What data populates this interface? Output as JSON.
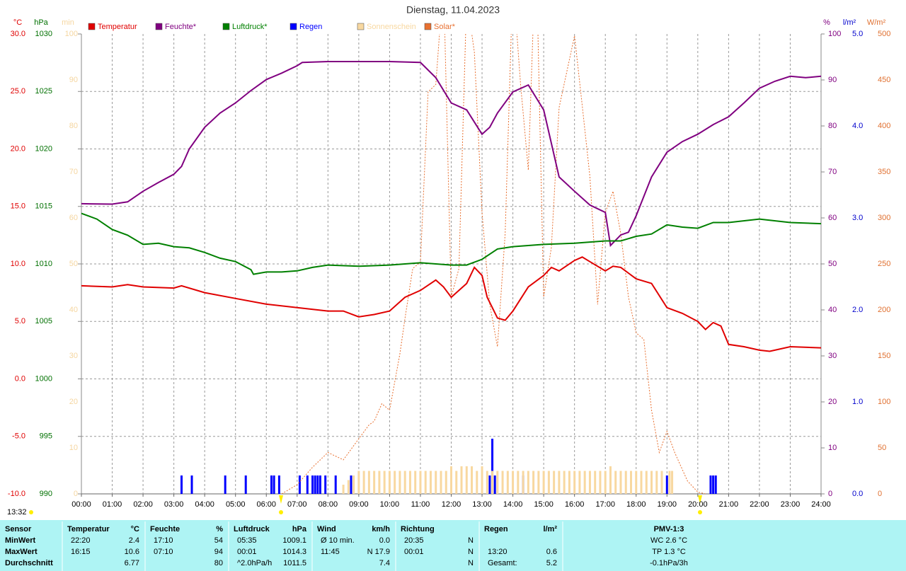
{
  "chart_data": {
    "type": "line",
    "title": "Dienstag, 11.04.2023",
    "grid": true,
    "xlim": [
      0,
      1440
    ],
    "xticks": [
      {
        "value": 0,
        "label": "00:00"
      },
      {
        "value": 60,
        "label": "01:00"
      },
      {
        "value": 120,
        "label": "02:00"
      },
      {
        "value": 180,
        "label": "03:00"
      },
      {
        "value": 240,
        "label": "04:00"
      },
      {
        "value": 300,
        "label": "05:00"
      },
      {
        "value": 360,
        "label": "06:00"
      },
      {
        "value": 420,
        "label": "07:00"
      },
      {
        "value": 480,
        "label": "08:00"
      },
      {
        "value": 540,
        "label": "09:00"
      },
      {
        "value": 600,
        "label": "10:00"
      },
      {
        "value": 660,
        "label": "11:00"
      },
      {
        "value": 720,
        "label": "12:00"
      },
      {
        "value": 780,
        "label": "13:00"
      },
      {
        "value": 840,
        "label": "14:00"
      },
      {
        "value": 900,
        "label": "15:00"
      },
      {
        "value": 960,
        "label": "16:00"
      },
      {
        "value": 1020,
        "label": "17:00"
      },
      {
        "value": 1080,
        "label": "18:00"
      },
      {
        "value": 1140,
        "label": "19:00"
      },
      {
        "value": 1200,
        "label": "20:00"
      },
      {
        "value": 1260,
        "label": "21:00"
      },
      {
        "value": 1320,
        "label": "22:00"
      },
      {
        "value": 1380,
        "label": "23:00"
      },
      {
        "value": 1440,
        "label": "24:00"
      }
    ],
    "axes": [
      {
        "unit": "°C",
        "color": "#e00000",
        "lim": [
          -10,
          30
        ],
        "ticks": [
          {
            "value": 30,
            "label": "30.0"
          },
          {
            "value": 25,
            "label": "25.0"
          },
          {
            "value": 20,
            "label": "20.0"
          },
          {
            "value": 15,
            "label": "15.0"
          },
          {
            "value": 10,
            "label": "10.0"
          },
          {
            "value": 5,
            "label": "5.0"
          },
          {
            "value": 0,
            "label": "0.0"
          },
          {
            "value": -5,
            "label": "-5.0"
          },
          {
            "value": -10,
            "label": "-10.0"
          }
        ]
      },
      {
        "unit": "hPa",
        "color": "#007000",
        "lim": [
          990,
          1030
        ],
        "ticks": [
          1030,
          1025,
          1020,
          1015,
          1010,
          1005,
          1000,
          995,
          990
        ]
      },
      {
        "unit": "min",
        "color": "#f5d6a0",
        "lim": [
          0,
          100
        ],
        "ticks": [
          100,
          90,
          80,
          70,
          60,
          50,
          40,
          30,
          20,
          10,
          0
        ]
      },
      {
        "unit": "%",
        "color": "#800080",
        "lim": [
          0,
          100
        ],
        "ticks": [
          100,
          90,
          80,
          70,
          60,
          50,
          40,
          30,
          20,
          10,
          0
        ]
      },
      {
        "unit": "l/m²",
        "color": "#0000cc",
        "lim": [
          0,
          5
        ],
        "ticks": [
          {
            "value": 5,
            "label": "5.0"
          },
          {
            "value": 4,
            "label": "4.0"
          },
          {
            "value": 3,
            "label": "3.0"
          },
          {
            "value": 2,
            "label": "2.0"
          },
          {
            "value": 1,
            "label": "1.0"
          },
          {
            "value": 0,
            "label": "0.0"
          }
        ]
      },
      {
        "unit": "W/m²",
        "color": "#e07030",
        "lim": [
          0,
          500
        ],
        "ticks": [
          500,
          450,
          400,
          350,
          300,
          250,
          200,
          150,
          100,
          50,
          0
        ]
      }
    ],
    "series": [
      {
        "name": "Temperatur",
        "color": "#e00000",
        "type": "line",
        "axis": 0,
        "x": [
          0,
          60,
          90,
          120,
          180,
          195,
          240,
          300,
          360,
          420,
          480,
          510,
          540,
          570,
          600,
          630,
          660,
          690,
          705,
          720,
          750,
          765,
          780,
          790,
          810,
          825,
          840,
          870,
          900,
          915,
          930,
          960,
          975,
          990,
          1020,
          1035,
          1050,
          1080,
          1110,
          1140,
          1170,
          1200,
          1215,
          1230,
          1245,
          1260,
          1290,
          1320,
          1340,
          1350,
          1380,
          1440
        ],
        "values": [
          8.1,
          8.0,
          8.2,
          8.0,
          7.9,
          8.1,
          7.5,
          7.0,
          6.5,
          6.2,
          5.9,
          5.9,
          5.4,
          5.6,
          5.9,
          7.1,
          7.7,
          8.6,
          8.0,
          7.1,
          8.3,
          9.7,
          9.0,
          7.1,
          5.3,
          5.1,
          5.9,
          8.0,
          9.0,
          9.7,
          9.4,
          10.3,
          10.6,
          10.2,
          9.4,
          9.8,
          9.7,
          8.7,
          8.3,
          6.2,
          5.7,
          5.0,
          4.3,
          4.9,
          4.6,
          3.0,
          2.8,
          2.5,
          2.4,
          2.5,
          2.8,
          2.7
        ]
      },
      {
        "name": "Feuchte*",
        "color": "#800080",
        "type": "line",
        "axis": 3,
        "x": [
          0,
          60,
          90,
          120,
          150,
          180,
          195,
          210,
          240,
          270,
          300,
          330,
          360,
          390,
          420,
          430,
          480,
          600,
          660,
          690,
          720,
          750,
          780,
          795,
          810,
          840,
          870,
          900,
          930,
          960,
          990,
          1020,
          1030,
          1050,
          1065,
          1080,
          1110,
          1140,
          1170,
          1200,
          1230,
          1260,
          1290,
          1320,
          1350,
          1380,
          1410,
          1440
        ],
        "values": [
          63.1,
          63,
          63.5,
          65.8,
          67.7,
          69.5,
          71.2,
          75,
          79.7,
          82.8,
          85,
          87.7,
          90.1,
          91.5,
          93.1,
          93.8,
          94,
          94,
          93.8,
          90.5,
          85,
          83.5,
          78.2,
          79.7,
          82.8,
          87.4,
          88.9,
          83.5,
          68.9,
          65.8,
          62.8,
          61.2,
          54,
          56.3,
          56.9,
          60.5,
          68.9,
          74.3,
          76.6,
          78.2,
          80.3,
          82,
          85,
          88.2,
          89.7,
          90.8,
          90.5,
          90.8
        ]
      },
      {
        "name": "Luftdruck*",
        "color": "#008000",
        "type": "line",
        "axis": 1,
        "x": [
          0,
          30,
          60,
          90,
          120,
          150,
          180,
          210,
          240,
          270,
          300,
          330,
          335,
          360,
          390,
          420,
          450,
          480,
          540,
          600,
          660,
          720,
          750,
          780,
          810,
          840,
          900,
          960,
          1020,
          1050,
          1080,
          1110,
          1140,
          1170,
          1200,
          1230,
          1260,
          1320,
          1380,
          1440
        ],
        "values": [
          1014.4,
          1013.9,
          1013.0,
          1012.5,
          1011.7,
          1011.8,
          1011.5,
          1011.4,
          1011.0,
          1010.5,
          1010.2,
          1009.5,
          1009.1,
          1009.3,
          1009.3,
          1009.4,
          1009.7,
          1009.9,
          1009.8,
          1009.9,
          1010.1,
          1009.9,
          1009.9,
          1010.4,
          1011.3,
          1011.5,
          1011.7,
          1011.8,
          1012.0,
          1012.0,
          1012.4,
          1012.6,
          1013.4,
          1013.2,
          1013.1,
          1013.6,
          1013.6,
          1013.9,
          1013.6,
          1013.5
        ]
      },
      {
        "name": "Regen",
        "color": "#0000ff",
        "type": "bar",
        "axis": 4,
        "x": [
          195,
          215,
          280,
          320,
          370,
          375,
          385,
          425,
          440,
          450,
          455,
          460,
          465,
          475,
          495,
          525,
          795,
          800,
          805,
          860,
          1140,
          1225,
          1230,
          1235
        ],
        "values": [
          0.2,
          0.2,
          0.2,
          0.2,
          0.2,
          0.2,
          0.2,
          0.2,
          0.2,
          0.2,
          0.2,
          0.2,
          0.2,
          0.2,
          0.2,
          0.2,
          0.2,
          0.6,
          0.2,
          0.2,
          0.2,
          0.2,
          0.2,
          0.2
        ]
      },
      {
        "name": "Sonnenschein",
        "color": "#f8d8a0",
        "type": "bar",
        "axis": 2,
        "x": [
          510,
          520,
          530,
          540,
          550,
          560,
          570,
          580,
          590,
          600,
          610,
          620,
          630,
          640,
          650,
          660,
          670,
          680,
          690,
          700,
          710,
          720,
          730,
          740,
          750,
          760,
          770,
          780,
          790,
          800,
          810,
          820,
          830,
          840,
          850,
          860,
          870,
          880,
          890,
          900,
          910,
          920,
          930,
          940,
          950,
          960,
          970,
          980,
          990,
          1000,
          1010,
          1020,
          1030,
          1040,
          1050,
          1060,
          1070,
          1080,
          1090,
          1100,
          1110,
          1120,
          1130,
          1145,
          1150
        ],
        "values": [
          2,
          3,
          4,
          5,
          5,
          5,
          5,
          5,
          5,
          5,
          5,
          5,
          5,
          5,
          5,
          5,
          5,
          5,
          5,
          5,
          5,
          6,
          5,
          6,
          6,
          6,
          5,
          6,
          5,
          5,
          5,
          5,
          5,
          5,
          5,
          5,
          5,
          5,
          5,
          5,
          5,
          5,
          5,
          5,
          5,
          5,
          5,
          5,
          5,
          5,
          5,
          5,
          6,
          5,
          5,
          5,
          5,
          5,
          5,
          5,
          5,
          5,
          5,
          5,
          5
        ]
      },
      {
        "name": "Solar*",
        "color": "#e87030",
        "type": "dotted",
        "axis": 5,
        "x": [
          390,
          420,
          450,
          480,
          510,
          540,
          560,
          570,
          585,
          600,
          620,
          630,
          645,
          660,
          675,
          690,
          705,
          720,
          735,
          750,
          765,
          780,
          795,
          810,
          825,
          840,
          855,
          870,
          885,
          900,
          915,
          930,
          960,
          975,
          990,
          1005,
          1020,
          1035,
          1050,
          1065,
          1080,
          1095,
          1110,
          1125,
          1140,
          1155,
          1180,
          1200,
          1215
        ],
        "values": [
          0,
          10,
          29,
          45,
          37,
          60,
          75,
          79,
          98,
          91,
          152,
          191,
          245,
          252,
          437,
          445,
          560,
          214,
          245,
          540,
          480,
          306,
          206,
          160,
          283,
          560,
          445,
          352,
          600,
          214,
          268,
          420,
          498,
          422,
          345,
          206,
          306,
          329,
          283,
          214,
          175,
          168,
          91,
          45,
          68,
          45,
          14,
          2,
          0
        ]
      }
    ]
  },
  "timestamp": "13:32",
  "table": {
    "header": [
      [
        "Sensor"
      ],
      [
        "Temperatur",
        "°C"
      ],
      [
        "Feuchte",
        "%"
      ],
      [
        "Luftdruck",
        "hPa"
      ],
      [
        "Wind",
        "km/h"
      ],
      [
        "Richtung"
      ],
      [
        "Regen",
        "l/m²"
      ],
      [
        "PMV-1:3"
      ]
    ],
    "rows": [
      {
        "label": "MinWert",
        "cells": [
          [
            "22:20",
            "2.4"
          ],
          [
            "17:10",
            "54"
          ],
          [
            "05:35",
            "1009.1"
          ],
          [
            "Ø 10 min.",
            "0.0"
          ],
          [
            "20:35",
            "N"
          ],
          [],
          [
            "WC 2.6 °C"
          ]
        ]
      },
      {
        "label": "MaxWert",
        "cells": [
          [
            "16:15",
            "10.6"
          ],
          [
            "07:10",
            "94"
          ],
          [
            "00:01",
            "1014.3"
          ],
          [
            "11:45",
            "N 17.9"
          ],
          [
            "00:01",
            "N"
          ],
          [
            "13:20",
            "0.6"
          ],
          [
            "TP 1.3 °C"
          ]
        ]
      },
      {
        "label": "Durchschnitt",
        "cells": [
          [
            null,
            "6.77"
          ],
          [
            null,
            "80"
          ],
          [
            "^2.0hPa/h",
            "1011.5"
          ],
          [
            null,
            "7.4"
          ],
          [
            null,
            "N"
          ],
          [
            "Gesamt:",
            "5.2"
          ],
          [
            "-0.1hPa/3h"
          ]
        ]
      }
    ]
  }
}
